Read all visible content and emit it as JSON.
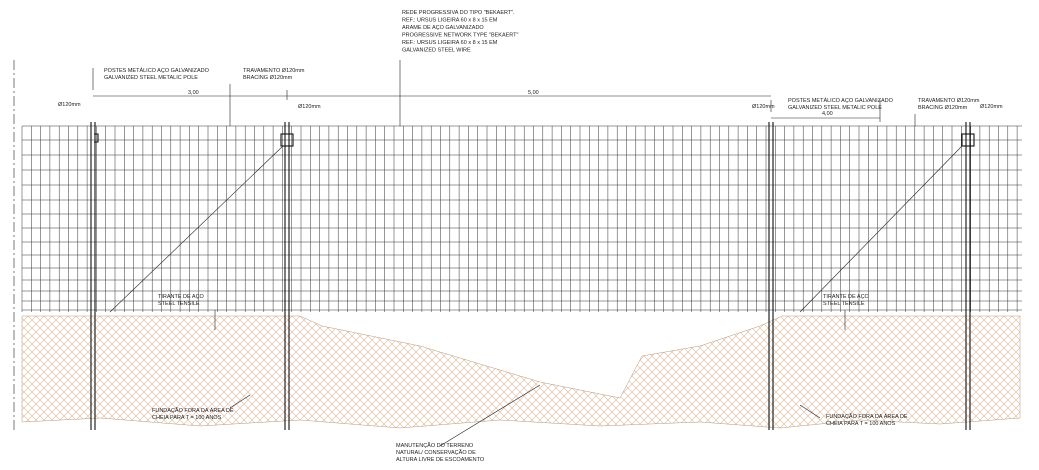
{
  "network_label": [
    "REDE PROGRESSIVA DO TIPO \"BEKAERT\".",
    "REF.: URSUS LIGEIRA 60 x 8 x 15 EM",
    "ARAME DE AÇO GALVANIZADO",
    "PROGRESSIVE NETWORK TYPE \"BEKAERT\"",
    "REF.: URSUS LIGEIRA 60 x 8 x 15 EM",
    "GALVANIZED STEEL WIRE"
  ],
  "left_pole_label": [
    "POSTES METÁLICO AÇO GALVANIZADO",
    "GALVANIZED STEEL METALIC POLE"
  ],
  "left_bracing_label": [
    "TRAVAMENTO Ø120mm",
    "BRACING Ø120mm"
  ],
  "right_pole_label": [
    "POSTES METÁLICO AÇO GALVANIZADO",
    "GALVANIZED STEEL METALIC POLE"
  ],
  "right_bracing_label": [
    "TRAVAMENTO Ø120mm",
    "BRACING Ø120mm"
  ],
  "dimensions": [
    "3,00",
    "5,00",
    "4,00"
  ],
  "diameters": [
    "Ø120mm",
    "Ø120mm",
    "Ø120mm",
    "Ø120mm"
  ],
  "left_tie_label": [
    "TIRANTE DE AÇO",
    "STEEL TENSILE"
  ],
  "right_tie_label": [
    "TIRANTE DE AÇO",
    "STEEL TENSILE"
  ],
  "left_foundation_label": [
    "FUNDAÇÃO FORA DA ÁREA DE",
    "CHEIA PARA T = 100 ANOS"
  ],
  "right_foundation_label": [
    "FUNDAÇÃO FORA DA ÁREA DE",
    "CHEIA PARA T = 100 ANOS"
  ],
  "terrain_label": [
    "MANUTENÇÃO DO TERRENO",
    "NATURAL/ CONSERVAÇÃO DE",
    "ALTURA LIVRE DE ESCOAMENTO"
  ]
}
